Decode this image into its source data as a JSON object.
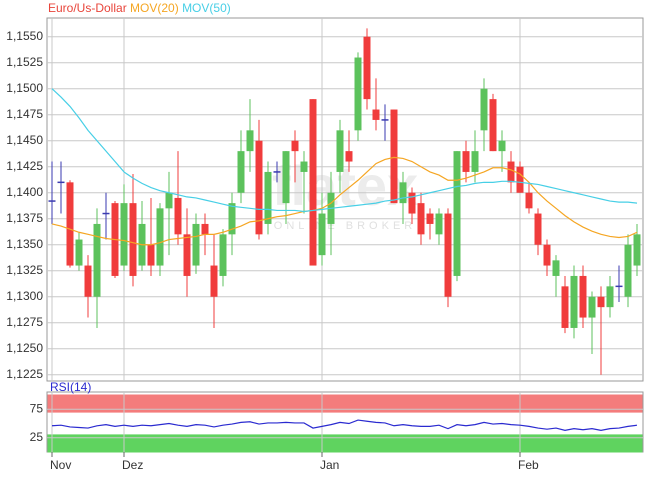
{
  "chart_data": [
    {
      "type": "candlestick",
      "categories": [
        "Nov",
        null,
        null,
        null,
        null,
        null,
        null,
        null,
        "Dez",
        null,
        null,
        null,
        null,
        null,
        null,
        null,
        null,
        null,
        null,
        null,
        null,
        null,
        null,
        null,
        null,
        null,
        null,
        null,
        null,
        null,
        "Jan",
        null,
        null,
        null,
        null,
        null,
        null,
        null,
        null,
        null,
        null,
        null,
        null,
        null,
        null,
        null,
        null,
        null,
        null,
        null,
        null,
        null,
        "Feb",
        null,
        null,
        null,
        null,
        null,
        null,
        null,
        null,
        null,
        null,
        null,
        null,
        null
      ],
      "ylim": [
        1.1219,
        1.1568
      ],
      "yticks": [
        {
          "value": 1.1225,
          "label": "1,1225"
        },
        {
          "value": 1.125,
          "label": "1,1250"
        },
        {
          "value": 1.1275,
          "label": "1,1275"
        },
        {
          "value": 1.13,
          "label": "1,1300"
        },
        {
          "value": 1.1325,
          "label": "1,1325"
        },
        {
          "value": 1.135,
          "label": "1,1350"
        },
        {
          "value": 1.1375,
          "label": "1,1375"
        },
        {
          "value": 1.14,
          "label": "1,1400"
        },
        {
          "value": 1.1425,
          "label": "1,1425"
        },
        {
          "value": 1.145,
          "label": "1,1450"
        },
        {
          "value": 1.1475,
          "label": "1,1475"
        },
        {
          "value": 1.15,
          "label": "1,1500"
        },
        {
          "value": 1.1525,
          "label": "1,1525"
        },
        {
          "value": 1.155,
          "label": "1,1550"
        }
      ],
      "grid": true,
      "watermark": {
        "text": "flatex",
        "subtext": "ONLINE BROKER"
      },
      "series": [
        {
          "name": "Euro/Us-Dollar",
          "type": "candlestick",
          "color": "#e8443a",
          "up_color": "#5cc25c",
          "down_color": "#f03c3c",
          "doji_color": "#3a3ab0",
          "open": [
            1.1392,
            1.141,
            1.141,
            1.133,
            1.133,
            1.13,
            1.138,
            1.139,
            1.133,
            1.139,
            1.133,
            1.135,
            1.133,
            1.1385,
            1.1395,
            1.136,
            1.133,
            1.137,
            1.133,
            1.132,
            1.136,
            1.14,
            1.144,
            1.145,
            1.137,
            1.142,
            1.139,
            1.145,
            1.142,
            1.149,
            1.134,
            1.137,
            1.142,
            1.144,
            1.146,
            1.155,
            1.148,
            1.147,
            1.148,
            1.139,
            1.14,
            1.139,
            1.138,
            1.136,
            1.138,
            1.132,
            1.144,
            1.142,
            1.146,
            1.149,
            1.144,
            1.143,
            1.1425,
            1.14,
            1.138,
            1.135,
            1.132,
            1.131,
            1.127,
            1.132,
            1.128,
            1.13,
            1.129,
            1.131,
            1.13,
            1.133
          ],
          "high": [
            1.143,
            1.143,
            1.1412,
            1.1362,
            1.134,
            1.1385,
            1.14,
            1.1392,
            1.1408,
            1.1418,
            1.1392,
            1.1395,
            1.139,
            1.142,
            1.144,
            1.1385,
            1.138,
            1.138,
            1.136,
            1.1365,
            1.14,
            1.146,
            1.149,
            1.147,
            1.143,
            1.143,
            1.144,
            1.146,
            1.144,
            1.149,
            1.14,
            1.142,
            1.147,
            1.146,
            1.1535,
            1.1558,
            1.151,
            1.1485,
            1.148,
            1.142,
            1.1405,
            1.14,
            1.1385,
            1.1385,
            1.1385,
            1.144,
            1.145,
            1.146,
            1.151,
            1.1495,
            1.146,
            1.144,
            1.143,
            1.141,
            1.1385,
            1.1355,
            1.134,
            1.132,
            1.133,
            1.133,
            1.1305,
            1.131,
            1.132,
            1.133,
            1.136,
            1.137
          ],
          "low": [
            1.137,
            1.138,
            1.1328,
            1.1325,
            1.128,
            1.127,
            1.1355,
            1.1318,
            1.1325,
            1.131,
            1.1325,
            1.132,
            1.132,
            1.134,
            1.135,
            1.13,
            1.1322,
            1.134,
            1.127,
            1.131,
            1.134,
            1.139,
            1.142,
            1.1355,
            1.136,
            1.141,
            1.137,
            1.141,
            1.138,
            1.133,
            1.133,
            1.134,
            1.14,
            1.142,
            1.145,
            1.148,
            1.146,
            1.145,
            1.139,
            1.137,
            1.137,
            1.135,
            1.1355,
            1.135,
            1.129,
            1.1315,
            1.141,
            1.141,
            1.144,
            1.144,
            1.142,
            1.14,
            1.14,
            1.138,
            1.134,
            1.132,
            1.13,
            1.1265,
            1.126,
            1.127,
            1.1245,
            1.1225,
            1.128,
            1.1295,
            1.129,
            1.132
          ],
          "close": [
            1.1392,
            1.141,
            1.133,
            1.1355,
            1.13,
            1.137,
            1.138,
            1.132,
            1.139,
            1.132,
            1.137,
            1.133,
            1.1385,
            1.14,
            1.136,
            1.132,
            1.137,
            1.136,
            1.13,
            1.136,
            1.139,
            1.144,
            1.146,
            1.136,
            1.142,
            1.142,
            1.144,
            1.144,
            1.143,
            1.133,
            1.138,
            1.14,
            1.146,
            1.143,
            1.153,
            1.149,
            1.147,
            1.147,
            1.139,
            1.141,
            1.138,
            1.136,
            1.137,
            1.138,
            1.13,
            1.144,
            1.142,
            1.144,
            1.15,
            1.144,
            1.145,
            1.141,
            1.14,
            1.1385,
            1.135,
            1.133,
            1.1335,
            1.127,
            1.132,
            1.128,
            1.13,
            1.129,
            1.131,
            1.131,
            1.135,
            1.136
          ]
        },
        {
          "name": "MOV(20)",
          "color": "#f5a623",
          "values": [
            1.137,
            1.1368,
            1.1365,
            1.1362,
            1.136,
            1.1358,
            1.1356,
            1.1355,
            1.1354,
            1.1352,
            1.135,
            1.135,
            1.1352,
            1.1355,
            1.1356,
            1.1357,
            1.1358,
            1.136,
            1.136,
            1.1362,
            1.1365,
            1.1368,
            1.1372,
            1.1373,
            1.1375,
            1.1377,
            1.1378,
            1.138,
            1.1382,
            1.1383,
            1.1385,
            1.139,
            1.1398,
            1.1405,
            1.1412,
            1.142,
            1.1428,
            1.1432,
            1.1434,
            1.1433,
            1.143,
            1.1425,
            1.142,
            1.1417,
            1.1412,
            1.1412,
            1.1414,
            1.1417,
            1.142,
            1.1424,
            1.1424,
            1.1422,
            1.1418,
            1.141,
            1.14,
            1.1392,
            1.1385,
            1.1378,
            1.1372,
            1.1367,
            1.1363,
            1.136,
            1.1358,
            1.1357,
            1.1358,
            1.1362
          ]
        },
        {
          "name": "MOV(50)",
          "color": "#47cfe6",
          "values": [
            1.15,
            1.1492,
            1.1483,
            1.1472,
            1.146,
            1.145,
            1.144,
            1.143,
            1.142,
            1.1414,
            1.1409,
            1.1405,
            1.1402,
            1.14,
            1.1398,
            1.1396,
            1.1395,
            1.1393,
            1.1391,
            1.1389,
            1.1387,
            1.1386,
            1.1385,
            1.1384,
            1.1384,
            1.1383,
            1.1383,
            1.1383,
            1.1382,
            1.1383,
            1.1384,
            1.1385,
            1.1386,
            1.1387,
            1.1388,
            1.1389,
            1.139,
            1.1392,
            1.1393,
            1.1395,
            1.1396,
            1.1398,
            1.14,
            1.1402,
            1.1404,
            1.1406,
            1.1407,
            1.1409,
            1.141,
            1.141,
            1.1411,
            1.1411,
            1.141,
            1.1409,
            1.1408,
            1.1406,
            1.1404,
            1.1402,
            1.14,
            1.1398,
            1.1396,
            1.1394,
            1.1392,
            1.1391,
            1.1391,
            1.139
          ]
        }
      ]
    },
    {
      "type": "line",
      "ylim": [
        0,
        100
      ],
      "yticks": [
        25,
        75
      ],
      "bands": [
        {
          "from": 70,
          "to": 100,
          "color": "#f47c7c"
        },
        {
          "from": 0,
          "to": 30,
          "color": "#5fd35f"
        }
      ],
      "series": [
        {
          "name": "RSI(14)",
          "color": "#2a2ad0",
          "values": [
            46,
            47,
            44,
            43,
            42,
            46,
            48,
            45,
            47,
            45,
            47,
            46,
            48,
            50,
            47,
            45,
            48,
            47,
            44,
            47,
            49,
            52,
            53,
            49,
            51,
            51,
            52,
            51,
            51,
            42,
            45,
            48,
            52,
            50,
            56,
            54,
            52,
            51,
            46,
            48,
            46,
            45,
            45,
            47,
            41,
            48,
            46,
            48,
            52,
            49,
            50,
            48,
            47,
            45,
            42,
            40,
            42,
            38,
            41,
            39,
            41,
            38,
            41,
            42,
            45,
            47
          ]
        }
      ]
    }
  ]
}
